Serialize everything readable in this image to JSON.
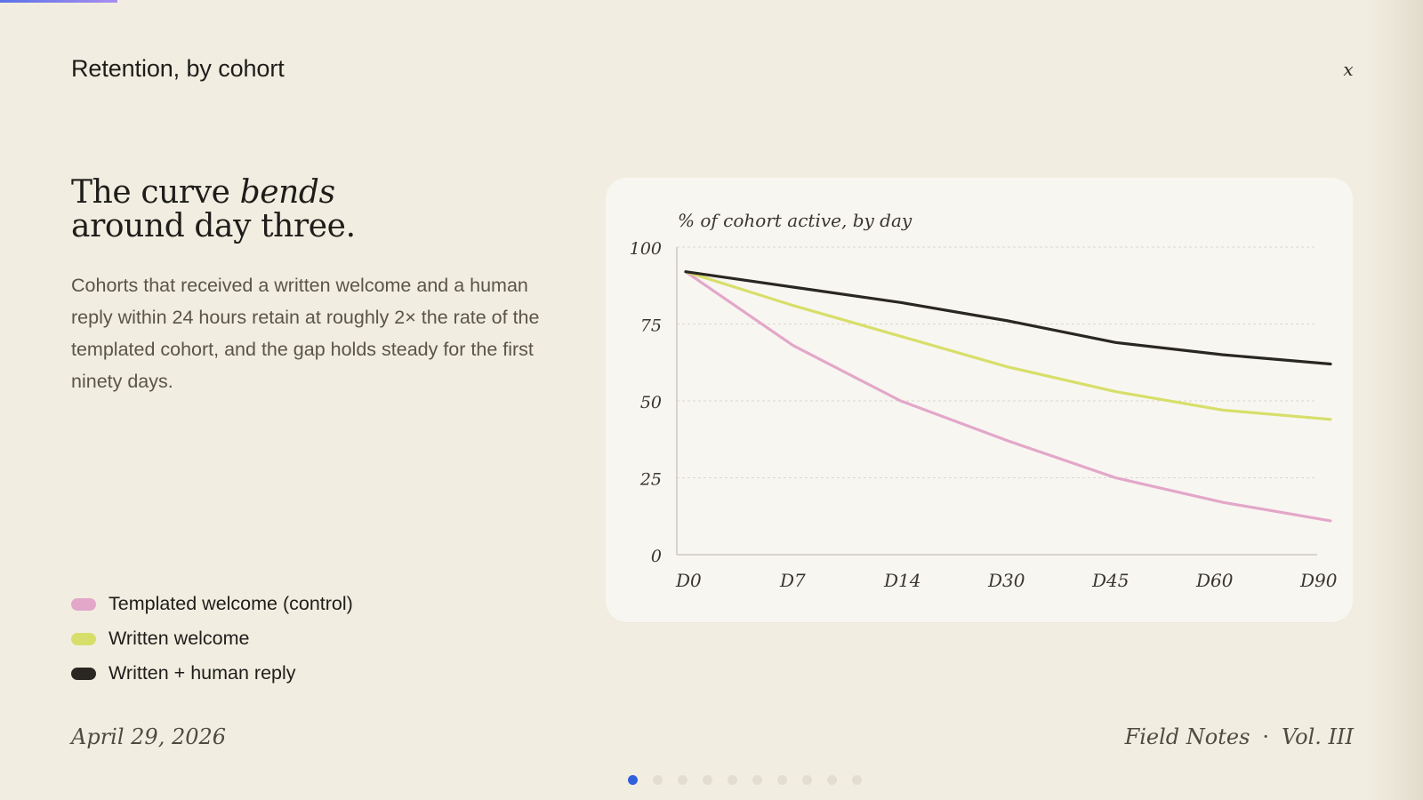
{
  "header": {
    "title": "Retention, by cohort",
    "close_label": "x"
  },
  "story": {
    "headline_part1": "The curve ",
    "headline_emphasis": "bends",
    "headline_part2": "around day three.",
    "body": "Cohorts that received a written welcome and a human reply within 24 hours retain at roughly 2× the rate of the templated cohort, and the gap holds steady for the first ninety days."
  },
  "legend": [
    {
      "label": "Templated welcome (control)",
      "color": "#e3a7c9"
    },
    {
      "label": "Written welcome",
      "color": "#d7df6a"
    },
    {
      "label": "Written + human reply",
      "color": "#2a2722"
    }
  ],
  "chart_data": {
    "type": "line",
    "ylabel": "% of cohort active, by day",
    "xlabel": "",
    "categories": [
      "D0",
      "D7",
      "D14",
      "D30",
      "D45",
      "D60",
      "D90"
    ],
    "ylim": [
      0,
      100
    ],
    "yticks": [
      "100",
      "75",
      "50",
      "25",
      "0"
    ],
    "grid": true,
    "series": [
      {
        "name": "Templated welcome (control)",
        "color": "#e3a7c9",
        "values": [
          92,
          68,
          50,
          37,
          25,
          17,
          11
        ]
      },
      {
        "name": "Written welcome",
        "color": "#d7df6a",
        "values": [
          92,
          81,
          71,
          61,
          53,
          47,
          44
        ]
      },
      {
        "name": "Written + human reply",
        "color": "#2a2722",
        "values": [
          92,
          87,
          82,
          76,
          69,
          65,
          62
        ]
      }
    ]
  },
  "footer": {
    "date": "April 29, 2026",
    "publication": "Field Notes",
    "separator": "·",
    "volume": "Vol. III"
  },
  "pagination": {
    "pages": 10,
    "active": 0
  }
}
